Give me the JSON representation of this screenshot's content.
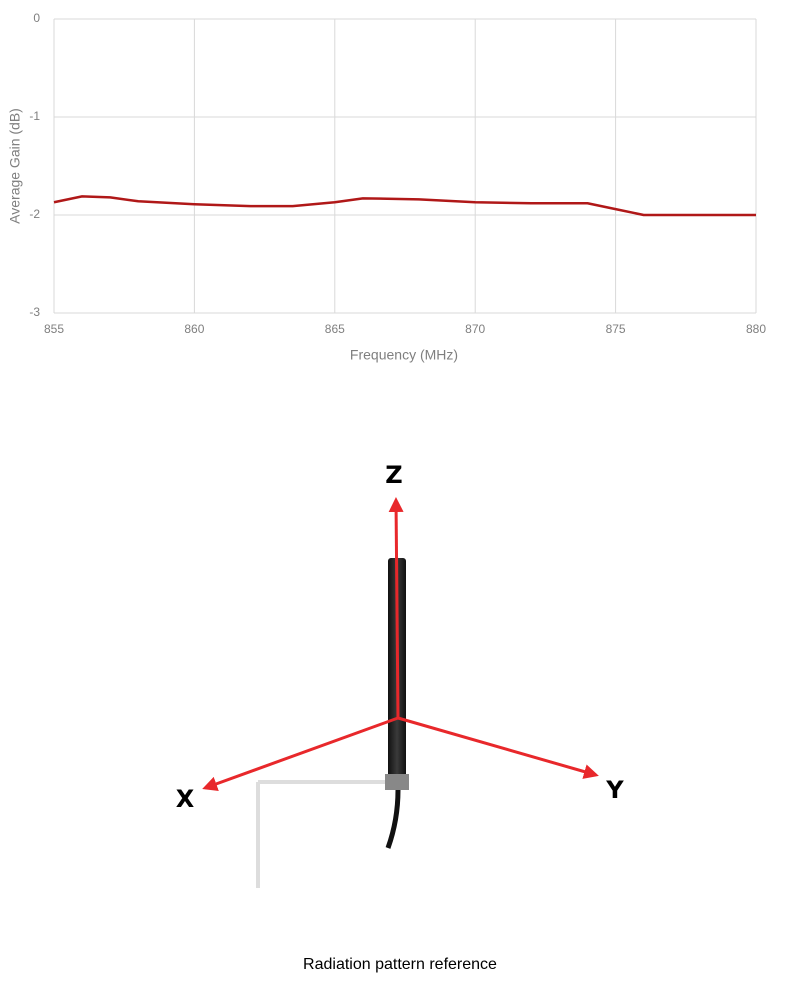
{
  "chart_data": {
    "type": "line",
    "x_label": "Frequency (MHz)",
    "y_label": "Average Gain (dB)",
    "x": [
      855,
      856,
      857,
      858,
      860,
      862,
      863.5,
      865,
      866,
      868,
      870,
      872,
      874,
      875,
      876,
      878,
      880
    ],
    "series": [
      {
        "name": "Average Gain",
        "color": "#b01818",
        "values": [
          -1.87,
          -1.81,
          -1.82,
          -1.86,
          -1.89,
          -1.91,
          -1.91,
          -1.87,
          -1.83,
          -1.84,
          -1.87,
          -1.88,
          -1.88,
          -1.94,
          -2.0,
          -2.0,
          -2.0
        ]
      }
    ],
    "xlim": [
      855,
      880
    ],
    "xticks": [
      855,
      860,
      865,
      870,
      875,
      880
    ],
    "ylim": [
      -3,
      0
    ],
    "yticks": [
      0,
      -1,
      -2,
      -3
    ],
    "grid": true
  },
  "diagram": {
    "z_label": "Z",
    "x_label": "X",
    "y_label": "Y",
    "caption": "Radiation pattern reference"
  }
}
